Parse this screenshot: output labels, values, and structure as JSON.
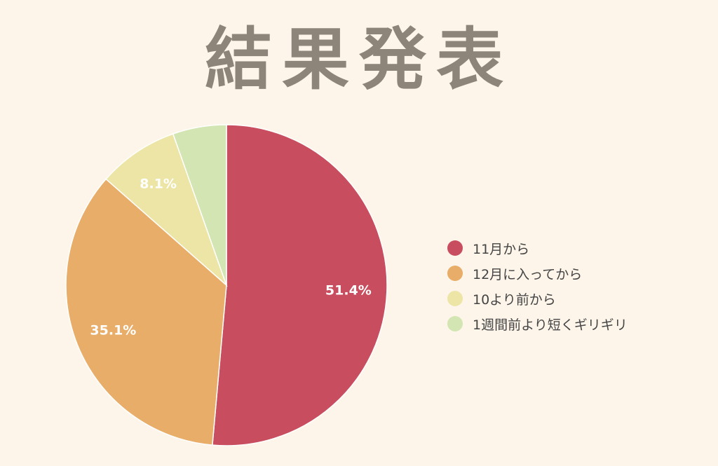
{
  "title": "結果発表",
  "chart_data": {
    "type": "pie",
    "categories": [
      "11月から",
      "12月に入ってから",
      "10より前から",
      "1週間前より短くギリギリ"
    ],
    "values": [
      51.4,
      35.1,
      8.1,
      5.4
    ],
    "labels": [
      "51.4%",
      "35.1%",
      "8.1%",
      ""
    ],
    "colors": [
      "#c84d5e",
      "#e8ad68",
      "#ede5a6",
      "#d3e5b2"
    ],
    "legend": "right"
  }
}
